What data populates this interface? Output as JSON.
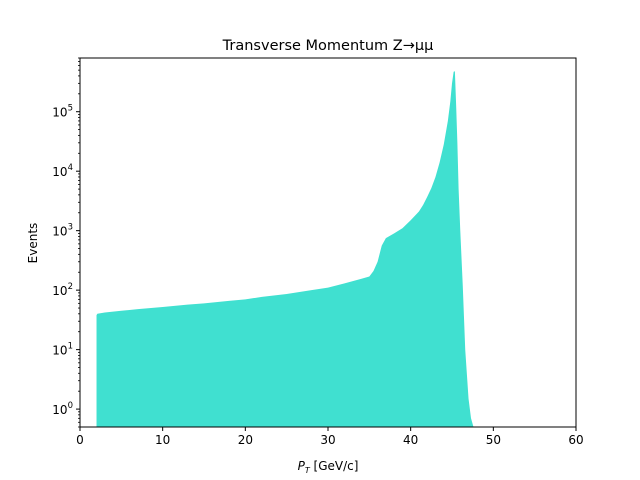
{
  "chart_data": {
    "type": "area",
    "title": "Transverse Momentum Z→μμ",
    "xlabel_main": "P",
    "xlabel_sub": "T",
    "xlabel_unit": " [GeV/c]",
    "ylabel": "Events",
    "xlim": [
      0,
      60
    ],
    "ylim": [
      0.5,
      800000
    ],
    "yscale": "log",
    "grid": false,
    "fill_color": "#40e0d0",
    "x_ticks": [
      0,
      10,
      20,
      30,
      40,
      50,
      60
    ],
    "x_tick_labels": [
      "0",
      "10",
      "20",
      "30",
      "40",
      "50",
      "60"
    ],
    "y_ticks": [
      1,
      10,
      100,
      1000,
      10000,
      100000
    ],
    "y_tick_labels": [
      {
        "base": "10",
        "exp": "0"
      },
      {
        "base": "10",
        "exp": "1"
      },
      {
        "base": "10",
        "exp": "2"
      },
      {
        "base": "10",
        "exp": "3"
      },
      {
        "base": "10",
        "exp": "4"
      },
      {
        "base": "10",
        "exp": "5"
      }
    ],
    "x": [
      2.0,
      2.1,
      3,
      5,
      7,
      10,
      13,
      15,
      18,
      20,
      22,
      25,
      28,
      30,
      32,
      34,
      35,
      35.5,
      36,
      36.5,
      37,
      38,
      39,
      40,
      41,
      41.5,
      42,
      42.5,
      43,
      43.5,
      44,
      44.5,
      44.8,
      45.0,
      45.2,
      45.35,
      45.5,
      45.65,
      45.8,
      46.0,
      46.3,
      46.6,
      47.0,
      47.3,
      47.6
    ],
    "y": [
      38,
      40,
      42,
      45,
      48,
      52,
      57,
      60,
      66,
      70,
      77,
      86,
      100,
      110,
      130,
      155,
      170,
      210,
      300,
      560,
      750,
      900,
      1100,
      1500,
      2100,
      2700,
      3700,
      5200,
      8000,
      14000,
      28000,
      70000,
      150000,
      300000,
      470000,
      480000,
      130000,
      30000,
      5000,
      1000,
      120,
      10,
      1.5,
      0.7,
      0.5
    ]
  }
}
